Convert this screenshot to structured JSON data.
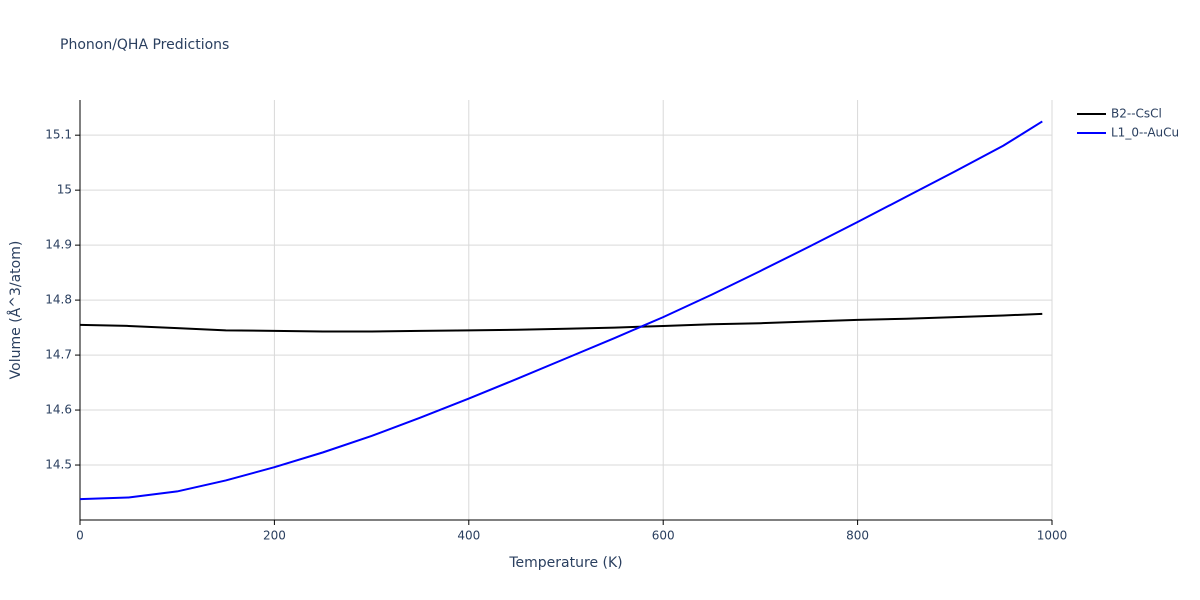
{
  "chart_data": {
    "type": "line",
    "title": "Phonon/QHA Predictions",
    "x_label": "Temperature (K)",
    "y_label": "Volume (Å^3/atom)",
    "x": [
      0,
      50,
      100,
      150,
      200,
      250,
      300,
      350,
      400,
      450,
      500,
      550,
      600,
      650,
      700,
      750,
      800,
      850,
      900,
      950,
      990
    ],
    "series": [
      {
        "name": "B2--CsCl",
        "color": "#000000",
        "values": [
          14.755,
          14.753,
          14.749,
          14.745,
          14.744,
          14.743,
          14.743,
          14.744,
          14.745,
          14.746,
          14.748,
          14.75,
          14.753,
          14.756,
          14.758,
          14.761,
          14.764,
          14.766,
          14.769,
          14.772,
          14.775
        ]
      },
      {
        "name": "L1_0--AuCu",
        "color": "#0000ff",
        "values": [
          14.438,
          14.441,
          14.452,
          14.472,
          14.496,
          14.523,
          14.553,
          14.586,
          14.621,
          14.657,
          14.694,
          14.731,
          14.769,
          14.81,
          14.853,
          14.897,
          14.942,
          14.988,
          15.034,
          15.081,
          15.125
        ]
      }
    ],
    "xlim": [
      0,
      1000
    ],
    "xticks": [
      0,
      200,
      400,
      600,
      800,
      1000
    ],
    "ylim": [
      14.4,
      15.164
    ],
    "yticks": [
      14.5,
      14.6,
      14.7,
      14.8,
      14.9,
      15,
      15.1
    ],
    "grid": true,
    "legend": "right"
  }
}
